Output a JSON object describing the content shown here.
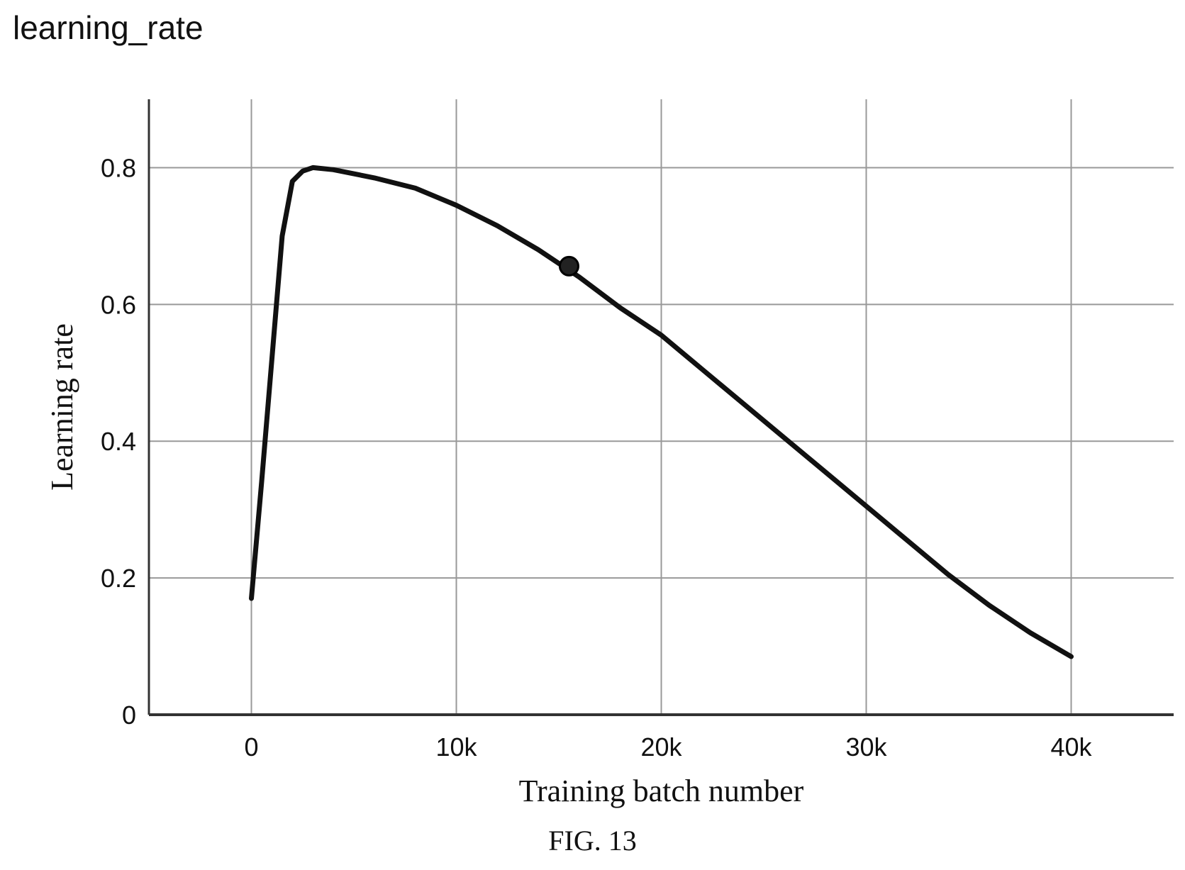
{
  "chart_data": {
    "type": "line",
    "title": "learning_rate",
    "xlabel": "Training batch number",
    "ylabel": "Learning rate",
    "caption": "FIG. 13",
    "xlim": [
      -5000,
      45000
    ],
    "ylim": [
      0,
      0.9
    ],
    "xticks": [
      0,
      10000,
      20000,
      30000,
      40000
    ],
    "xtick_labels": [
      "0",
      "10k",
      "20k",
      "30k",
      "40k"
    ],
    "yticks": [
      0,
      0.2,
      0.4,
      0.6,
      0.8
    ],
    "ytick_labels": [
      "0",
      "0.2",
      "0.4",
      "0.6",
      "0.8"
    ],
    "grid": true,
    "series": [
      {
        "color": "#111111",
        "x": [
          0,
          500,
          1000,
          1500,
          2000,
          2500,
          3000,
          4000,
          6000,
          8000,
          10000,
          12000,
          14000,
          16000,
          18000,
          20000,
          22000,
          24000,
          26000,
          28000,
          30000,
          32000,
          34000,
          36000,
          38000,
          40000
        ],
        "y": [
          0.17,
          0.34,
          0.52,
          0.7,
          0.78,
          0.795,
          0.8,
          0.797,
          0.785,
          0.77,
          0.745,
          0.715,
          0.68,
          0.64,
          0.595,
          0.555,
          0.505,
          0.455,
          0.405,
          0.355,
          0.305,
          0.255,
          0.205,
          0.16,
          0.12,
          0.085
        ]
      }
    ],
    "marker": {
      "x": 15500,
      "y": 0.656
    }
  }
}
